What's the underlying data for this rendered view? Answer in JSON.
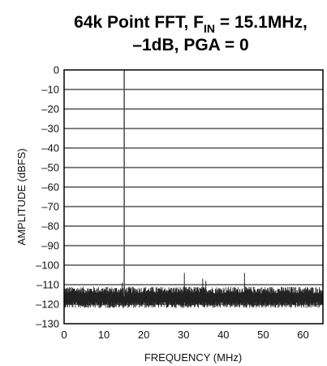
{
  "chart_data": {
    "type": "line",
    "title": {
      "line1_prefix": "64k Point FFT, F",
      "line1_subscript": "IN",
      "line1_suffix": " = 15.1MHz,",
      "line2": "–1dB, PGA = 0"
    },
    "xlabel": "FREQUENCY (MHz)",
    "ylabel": "AMPLITUDE (dBFS)",
    "xlim": [
      0,
      65
    ],
    "ylim": [
      -130,
      0
    ],
    "x_ticks": [
      0,
      10,
      20,
      30,
      40,
      50,
      60
    ],
    "x_tick_labels": [
      "0",
      "10",
      "20",
      "30",
      "40",
      "50",
      "60"
    ],
    "y_ticks": [
      0,
      -10,
      -20,
      -30,
      -40,
      -50,
      -60,
      -70,
      -80,
      -90,
      -100,
      -110,
      -120,
      -130
    ],
    "y_tick_labels": [
      "0",
      "–10",
      "–20",
      "–30",
      "–40",
      "–50",
      "–60",
      "–70",
      "–80",
      "–90",
      "–100",
      "–110",
      "–120",
      "–130"
    ],
    "grid": true,
    "trace_color": "#222222",
    "fundamental": {
      "x": 15.1,
      "y": 0
    },
    "noise_floor_dbfs": -116,
    "spurs": [
      {
        "x": 14.6,
        "y": -109
      },
      {
        "x": 30.2,
        "y": -104
      },
      {
        "x": 34.8,
        "y": -107
      },
      {
        "x": 35.6,
        "y": -108
      },
      {
        "x": 45.3,
        "y": -104
      },
      {
        "x": 2.5,
        "y": -112
      },
      {
        "x": 20.0,
        "y": -112
      }
    ]
  }
}
